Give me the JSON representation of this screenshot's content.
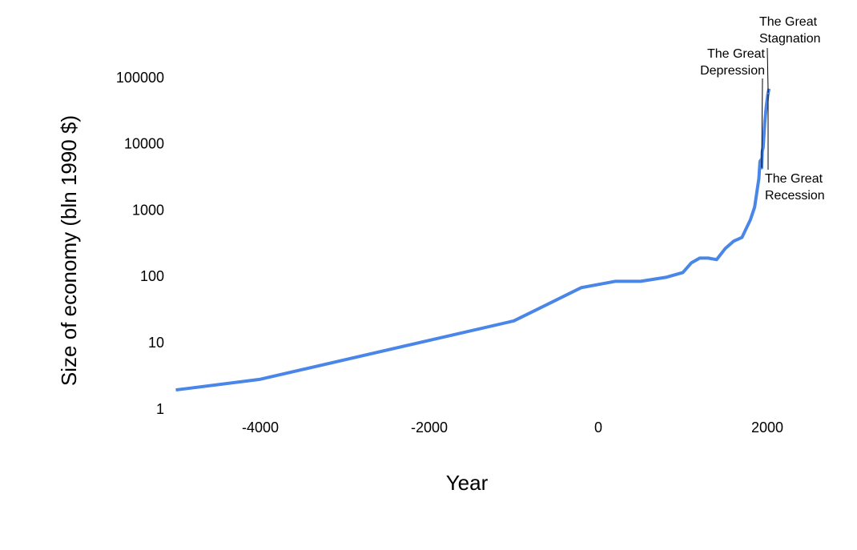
{
  "chart_data": {
    "type": "line",
    "x_label": "Year",
    "y_label": "Size of economy (bln 1990 $)",
    "log_y": true,
    "xlim": [
      -5000,
      2030
    ],
    "ylim": [
      1,
      100000
    ],
    "xticks": [
      -4000,
      -2000,
      0,
      2000
    ],
    "yticks": [
      1,
      10,
      100,
      1000,
      10000,
      100000
    ],
    "series": [
      {
        "color": "#4a86e8",
        "x": [
          -5000,
          -4000,
          -1000,
          -200,
          200,
          500,
          800,
          1000,
          1100,
          1200,
          1300,
          1400,
          1500,
          1600,
          1700,
          1800,
          1850,
          1900,
          1913,
          1929,
          1933,
          1940,
          1950,
          1960,
          1970,
          1980,
          1990,
          2000,
          2008,
          2009,
          2010,
          2020
        ],
        "values": [
          2,
          2.9,
          22,
          70,
          87,
          87,
          100,
          118,
          165,
          195,
          195,
          185,
          270,
          350,
          400,
          740,
          1150,
          3100,
          5600,
          6000,
          4500,
          8000,
          9000,
          14000,
          22000,
          30000,
          40000,
          50000,
          60000,
          58000,
          61000,
          70000
        ]
      }
    ],
    "annotations": [
      {
        "x": 1933,
        "text": [
          "The Great",
          "Depression"
        ],
        "side": "left-above"
      },
      {
        "x": 2010,
        "text": [
          "The Great",
          "Stagnation"
        ],
        "side": "right-above"
      },
      {
        "x": 2009,
        "text": [
          "The Great",
          "Recession"
        ],
        "side": "right-below"
      }
    ]
  }
}
